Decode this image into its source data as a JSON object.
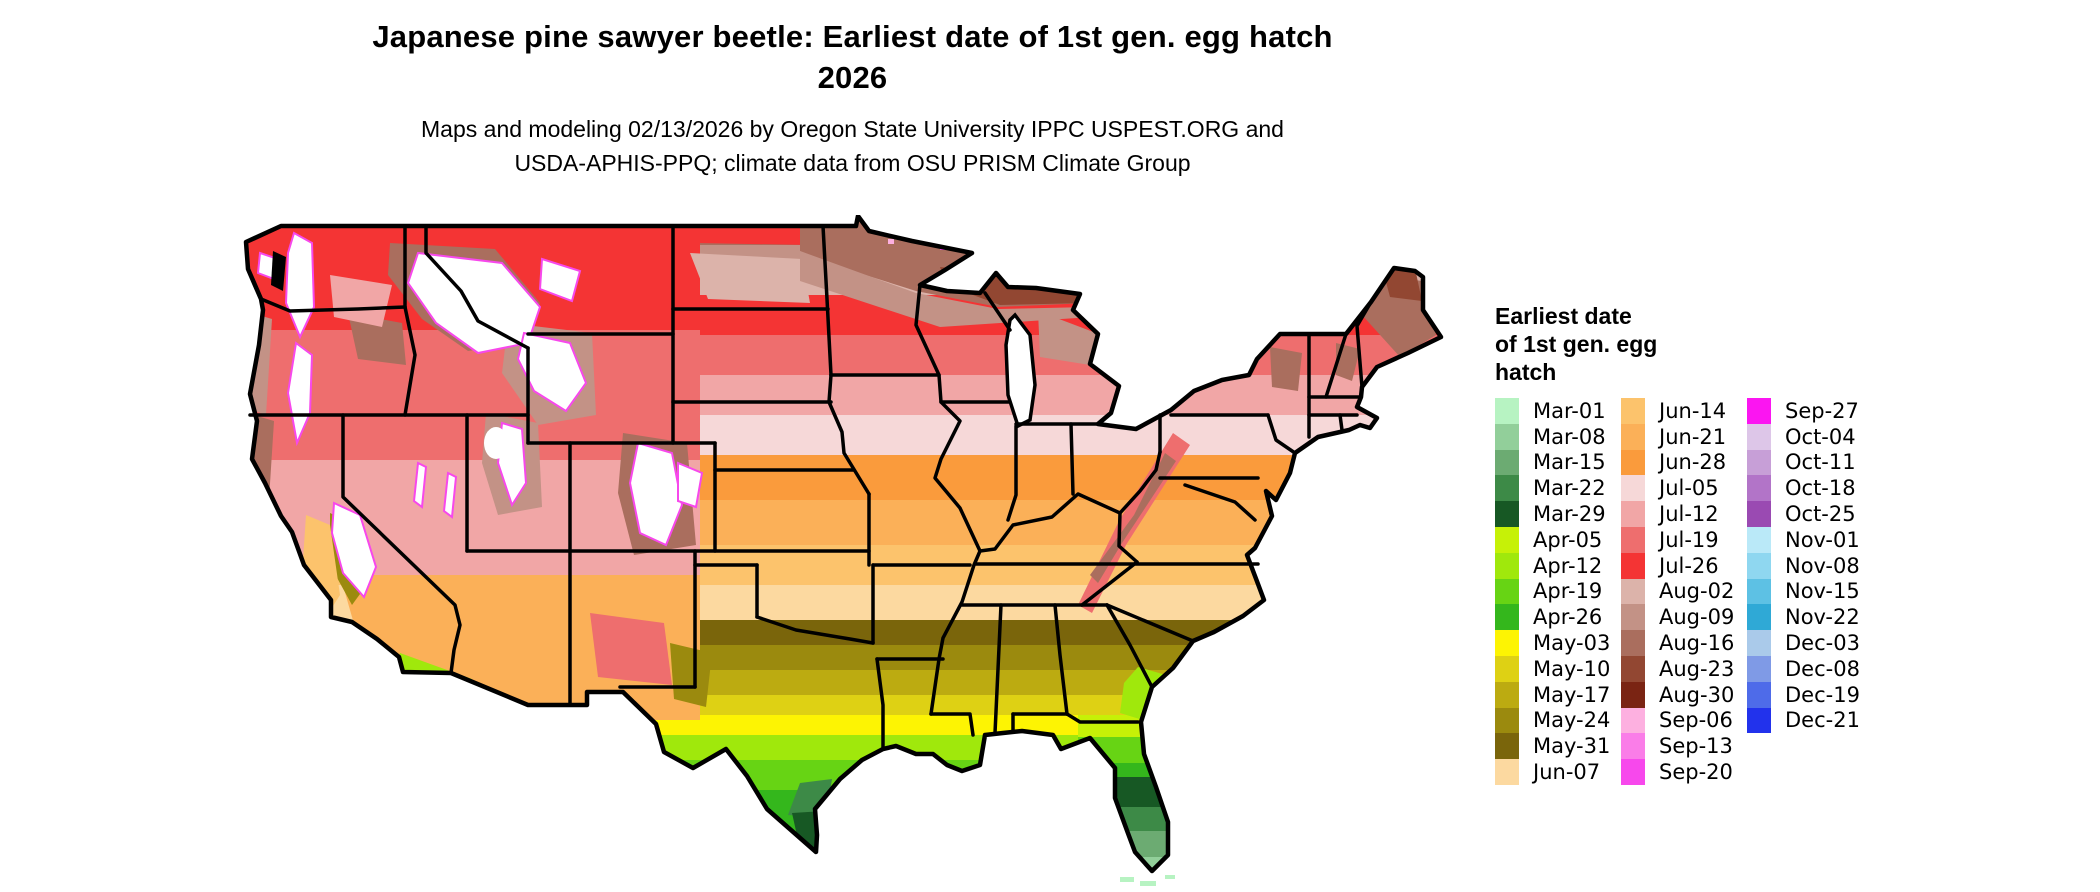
{
  "header": {
    "title_line1": "Japanese pine sawyer beetle: Earliest date of 1st gen. egg hatch",
    "title_line2": "2026",
    "subtitle_line1": "Maps and modeling 02/13/2026 by Oregon State University IPPC USPEST.ORG and",
    "subtitle_line2": "USDA-APHIS-PPQ; climate data from OSU PRISM Climate Group"
  },
  "map": {
    "region": "Continental United States",
    "kind": "gridded choropleth of earliest egg-hatch date",
    "border_color": "#000000",
    "no_data_color": "#ffffff"
  },
  "legend": {
    "title_lines": [
      "Earliest date",
      "of 1st gen. egg",
      "hatch"
    ],
    "columns": [
      [
        {
          "label": "Mar-01",
          "color": "#b7f3c2"
        },
        {
          "label": "Mar-08",
          "color": "#92cf9a"
        },
        {
          "label": "Mar-15",
          "color": "#6cab72"
        },
        {
          "label": "Mar-22",
          "color": "#3d8a47"
        },
        {
          "label": "Mar-29",
          "color": "#175824"
        },
        {
          "label": "Apr-05",
          "color": "#c6f107"
        },
        {
          "label": "Apr-12",
          "color": "#a0e80c"
        },
        {
          "label": "Apr-19",
          "color": "#67d414"
        },
        {
          "label": "Apr-26",
          "color": "#34b71c"
        },
        {
          "label": "May-03",
          "color": "#fdf403"
        },
        {
          "label": "May-10",
          "color": "#ded114"
        },
        {
          "label": "May-17",
          "color": "#bcab11"
        },
        {
          "label": "May-24",
          "color": "#9b8a0e"
        },
        {
          "label": "May-31",
          "color": "#7a650b"
        },
        {
          "label": "Jun-07",
          "color": "#fcd9a0"
        }
      ],
      [
        {
          "label": "Jun-14",
          "color": "#fcc36c"
        },
        {
          "label": "Jun-21",
          "color": "#fbb058"
        },
        {
          "label": "Jun-28",
          "color": "#fa9b3c"
        },
        {
          "label": "Jul-05",
          "color": "#f6d8d8"
        },
        {
          "label": "Jul-12",
          "color": "#f1a6a6"
        },
        {
          "label": "Jul-19",
          "color": "#ee6e6e"
        },
        {
          "label": "Jul-26",
          "color": "#f43434"
        },
        {
          "label": "Aug-02",
          "color": "#dcb3aa"
        },
        {
          "label": "Aug-09",
          "color": "#c39286"
        },
        {
          "label": "Aug-16",
          "color": "#aa6e5e"
        },
        {
          "label": "Aug-23",
          "color": "#924732"
        },
        {
          "label": "Aug-30",
          "color": "#7a2413"
        },
        {
          "label": "Sep-06",
          "color": "#fdb0e0"
        },
        {
          "label": "Sep-13",
          "color": "#fa7de8"
        },
        {
          "label": "Sep-20",
          "color": "#f748ec"
        }
      ],
      [
        {
          "label": "Sep-27",
          "color": "#fb15f1"
        },
        {
          "label": "Oct-04",
          "color": "#ddc6e8"
        },
        {
          "label": "Oct-11",
          "color": "#c79fd7"
        },
        {
          "label": "Oct-18",
          "color": "#b274c8"
        },
        {
          "label": "Oct-25",
          "color": "#9a4ab2"
        },
        {
          "label": "Nov-01",
          "color": "#bae9f8"
        },
        {
          "label": "Nov-08",
          "color": "#8fd7f0"
        },
        {
          "label": "Nov-15",
          "color": "#5dc1e4"
        },
        {
          "label": "Nov-22",
          "color": "#2fa9d6"
        },
        {
          "label": "Dec-03",
          "color": "#aacaea"
        },
        {
          "label": "Dec-08",
          "color": "#7f9ae6"
        },
        {
          "label": "Dec-19",
          "color": "#4e6be9"
        },
        {
          "label": "Dec-21",
          "color": "#2232ec"
        }
      ]
    ]
  }
}
